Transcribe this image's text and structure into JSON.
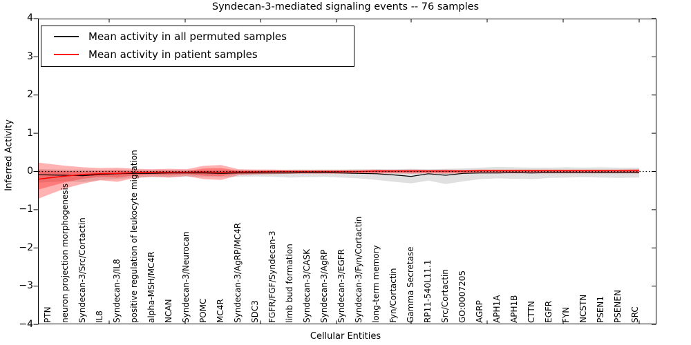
{
  "title": "Syndecan-3-mediated signaling events -- 76 samples",
  "axes": {
    "ylabel": "Inferred Activity",
    "xlabel": "Cellular Entities",
    "ytick_labels": [
      "4",
      "3",
      "2",
      "1",
      "0",
      "−1",
      "−2",
      "−3",
      "−4"
    ],
    "ytick_values": [
      4,
      3,
      2,
      1,
      0,
      -1,
      -2,
      -3,
      -4
    ]
  },
  "legend": {
    "items": [
      {
        "label": "Mean activity in all permuted samples",
        "color": "#000000"
      },
      {
        "label": "Mean activity in patient samples",
        "color": "#ff0000"
      }
    ]
  },
  "chart_data": {
    "type": "line",
    "title": "Syndecan-3-mediated signaling events -- 76 samples",
    "xlabel": "Cellular Entities",
    "ylabel": "Inferred Activity",
    "ylim": [
      -4,
      4
    ],
    "grid": false,
    "legend_position": "upper left",
    "zero_line": 0,
    "categories": [
      "PTN",
      "neuron projection morphogenesis",
      "Syndecan-3/Src/Cortactin",
      "IL8",
      "Syndecan-3/IL8",
      "positive regulation of leukocyte migration",
      "alpha-MSH/MC4R",
      "NCAN",
      "Syndecan-3/Neurocan",
      "POMC",
      "MC4R",
      "Syndecan-3/AgRP/MC4R",
      "SDC3",
      "FGFR/FGF/Syndecan-3",
      "limb bud formation",
      "Syndecan-3/CASK",
      "Syndecan-3/AgRP",
      "Syndecan-3/EGFR",
      "Syndecan-3/Fyn/Cortactin",
      "long-term memory",
      "Fyn/Cortactin",
      "Gamma Secretase",
      "RP11-540L11.1",
      "Src/Cortactin",
      "GO:0007205",
      "AGRP",
      "APH1A",
      "APH1B",
      "CTTN",
      "EGFR",
      "FYN",
      "NCSTN",
      "PSEN1",
      "PSENEN",
      "SRC"
    ],
    "series": [
      {
        "name": "Mean activity in all permuted samples",
        "color": "#000000",
        "values": [
          -0.09,
          -0.1,
          -0.11,
          -0.08,
          -0.06,
          -0.05,
          -0.05,
          -0.04,
          -0.04,
          -0.04,
          -0.05,
          -0.04,
          -0.04,
          -0.04,
          -0.04,
          -0.03,
          -0.03,
          -0.04,
          -0.05,
          -0.06,
          -0.09,
          -0.13,
          -0.06,
          -0.1,
          -0.05,
          -0.04,
          -0.04,
          -0.03,
          -0.04,
          -0.03,
          -0.03,
          -0.03,
          -0.03,
          -0.03,
          -0.03
        ]
      },
      {
        "name": "Mean activity in patient samples",
        "color": "#ff0000",
        "values": [
          -0.17,
          -0.12,
          -0.08,
          -0.06,
          -0.05,
          -0.03,
          -0.02,
          -0.02,
          -0.02,
          -0.01,
          -0.02,
          -0.01,
          -0.01,
          0.0,
          0.0,
          0.0,
          0.0,
          0.0,
          0.0,
          0.01,
          0.01,
          0.01,
          0.01,
          0.01,
          0.01,
          0.02,
          0.02,
          0.02,
          0.02,
          0.02,
          0.02,
          0.02,
          0.02,
          0.02,
          0.02
        ]
      }
    ],
    "bands": [
      {
        "name": "permuted samples range",
        "color": "#000000",
        "opacity": 0.12,
        "upper": [
          0.06,
          0.05,
          0.05,
          0.04,
          0.05,
          0.04,
          0.04,
          0.04,
          0.04,
          0.04,
          0.04,
          0.04,
          0.04,
          0.04,
          0.05,
          0.05,
          0.05,
          0.05,
          0.06,
          0.06,
          0.06,
          0.07,
          0.06,
          0.07,
          0.08,
          0.1,
          0.12,
          0.11,
          0.1,
          0.1,
          0.11,
          0.1,
          0.11,
          0.1,
          0.1
        ],
        "lower": [
          -0.28,
          -0.26,
          -0.28,
          -0.22,
          -0.2,
          -0.16,
          -0.15,
          -0.15,
          -0.14,
          -0.14,
          -0.15,
          -0.14,
          -0.13,
          -0.14,
          -0.16,
          -0.15,
          -0.14,
          -0.16,
          -0.18,
          -0.22,
          -0.27,
          -0.31,
          -0.24,
          -0.33,
          -0.26,
          -0.2,
          -0.18,
          -0.19,
          -0.2,
          -0.17,
          -0.16,
          -0.15,
          -0.16,
          -0.17,
          -0.16
        ]
      },
      {
        "name": "patient samples outer range",
        "color": "#ff0000",
        "opacity": 0.3,
        "upper": [
          0.2,
          0.15,
          0.11,
          0.09,
          0.1,
          0.07,
          0.06,
          0.07,
          0.06,
          0.15,
          0.17,
          0.06,
          0.05,
          0.05,
          0.04,
          0.04,
          0.04,
          0.04,
          0.04,
          0.05,
          0.04,
          0.05,
          0.04,
          0.05,
          0.04,
          0.05,
          0.05,
          0.05,
          0.05,
          0.05,
          0.05,
          0.05,
          0.05,
          0.05,
          0.06
        ],
        "lower": [
          -0.61,
          -0.44,
          -0.32,
          -0.23,
          -0.27,
          -0.17,
          -0.14,
          -0.16,
          -0.12,
          -0.2,
          -0.22,
          -0.1,
          -0.08,
          -0.07,
          -0.06,
          -0.06,
          -0.06,
          -0.06,
          -0.06,
          -0.06,
          -0.05,
          -0.06,
          -0.05,
          -0.06,
          -0.05,
          -0.05,
          -0.05,
          -0.05,
          -0.05,
          -0.05,
          -0.05,
          -0.05,
          -0.05,
          -0.05,
          -0.05
        ]
      },
      {
        "name": "patient samples inner range",
        "color": "#ff0000",
        "opacity": 0.3,
        "upper": [
          0.02,
          0.01,
          0.0,
          0.01,
          0.02,
          0.01,
          0.01,
          0.02,
          0.01,
          0.08,
          0.09,
          0.02,
          0.02,
          0.02,
          0.01,
          0.01,
          0.01,
          0.01,
          0.01,
          0.02,
          0.02,
          0.02,
          0.02,
          0.02,
          0.02,
          0.03,
          0.03,
          0.03,
          0.03,
          0.03,
          0.03,
          0.03,
          0.03,
          0.03,
          0.03
        ],
        "lower": [
          -0.4,
          -0.28,
          -0.19,
          -0.14,
          -0.16,
          -0.1,
          -0.08,
          -0.09,
          -0.07,
          -0.11,
          -0.12,
          -0.06,
          -0.05,
          -0.04,
          -0.03,
          -0.03,
          -0.03,
          -0.03,
          -0.03,
          -0.03,
          -0.03,
          -0.03,
          -0.03,
          -0.03,
          -0.03,
          -0.02,
          -0.02,
          -0.02,
          -0.02,
          -0.02,
          -0.02,
          -0.02,
          -0.02,
          -0.02,
          -0.02
        ]
      }
    ]
  }
}
